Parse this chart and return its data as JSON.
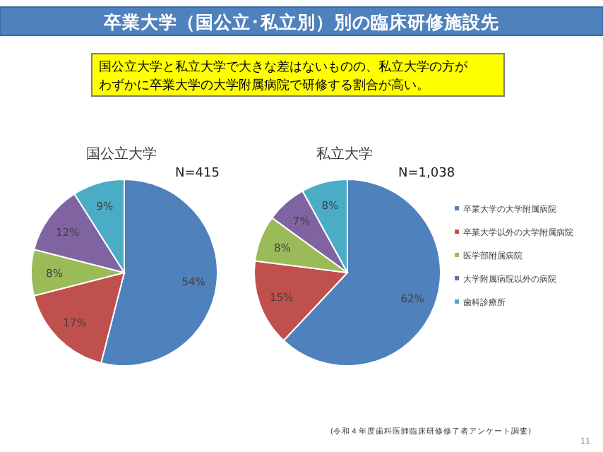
{
  "chart_data": [
    {
      "type": "other",
      "title": "卒業大学（国公立･私立別）別の臨床研修施設先",
      "subtitle": "国公立大学と私立大学で大きな差はないものの、私立大学の方がわずかに卒業大学の大学附属病院で研修する割合が高い。",
      "annotations": [
        "(令和４年度歯科医師臨床研修修了者アンケート調査)",
        "11"
      ]
    },
    {
      "type": "pie",
      "title": "国公立大学",
      "annotations": [
        "N=415"
      ],
      "values": [
        54,
        17,
        8,
        12,
        9
      ],
      "value_labels": [
        "54%",
        "17%",
        "8%",
        "12%",
        "9%"
      ],
      "colors": [
        "#4f81bd",
        "#c0504d",
        "#9bbb59",
        "#8064a2",
        "#4bacc6"
      ]
    },
    {
      "type": "pie",
      "title": "私立大学",
      "annotations": [
        "N=1,038"
      ],
      "categories": [
        "卒業大学の大学附属病院",
        "卒業大学以外の大学附属病院",
        "医学部附属病院",
        "大学附属病院以外の病院",
        "歯科診療所"
      ],
      "values": [
        62,
        15,
        8,
        7,
        8
      ],
      "value_labels": [
        "62%",
        "15%",
        "8%",
        "7%",
        "8%"
      ],
      "colors": [
        "#4f81bd",
        "#c0504d",
        "#9bbb59",
        "#8064a2",
        "#4bacc6"
      ],
      "legend": "right"
    }
  ]
}
